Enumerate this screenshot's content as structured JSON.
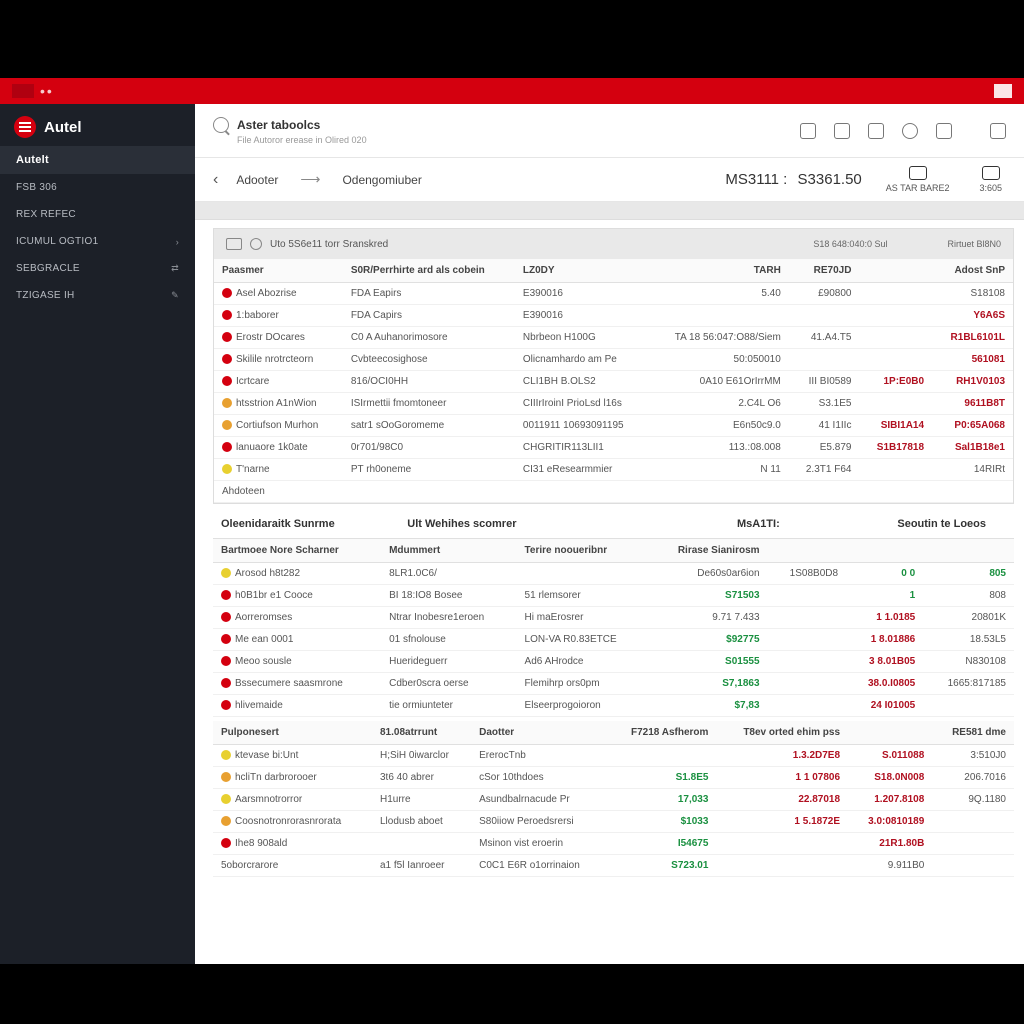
{
  "colors": {
    "accent": "#d4000f",
    "sidebar_bg": "#1c2028",
    "green": "#1a9040",
    "red_text": "#b01020"
  },
  "brand": {
    "name": "Autel"
  },
  "sidebar": {
    "active": "Autelt",
    "items": [
      {
        "label": "FSB 306"
      },
      {
        "label": "REX REFEC"
      },
      {
        "label": "ICUMUL OGTIO1",
        "caret": "›"
      },
      {
        "label": "SEBGRACLE",
        "caret": "⇄"
      },
      {
        "label": "TZIGASE IH",
        "caret": "✎"
      }
    ]
  },
  "topbar": {
    "title": "Aster taboolcs",
    "subtitle": "File Autoror erease in Olired 020"
  },
  "breadcrumb": {
    "level1": "Adooter",
    "level2": "Odengomiuber",
    "code": "MS3111 :",
    "amount": "S3361.50"
  },
  "status": [
    {
      "label": "AS TAR BARE2"
    },
    {
      "label": "3:605"
    }
  ],
  "panel1": {
    "header_left": "Uto 5S6e11 torr Sranskred",
    "header_r1": "S18 648:040:0 Sul",
    "header_r2": "Rirtuet  Bl8N0",
    "columns": [
      "Paasmer",
      "S0R/Perrhirte ard als cobein",
      "LZ0DY",
      "TARH",
      "RE70JD",
      "",
      "Adost SnP"
    ],
    "rows": [
      {
        "i": "red",
        "c": [
          "Asel Abozrise",
          "FDA Eapirs",
          "E390016",
          "5.40",
          "£90800",
          "",
          "S18108"
        ]
      },
      {
        "i": "red",
        "c": [
          "1:baborer",
          "FDA Capirs",
          "E390016",
          "",
          "",
          "",
          "Y6A6S"
        ],
        "cls": [
          "",
          "",
          "",
          "",
          "",
          "",
          "val-red"
        ]
      },
      {
        "i": "red",
        "c": [
          "Erostr DOcares",
          "C0 A Auhanorimosore",
          "Nbrbeon H100G",
          "TA 18 56:047:O88/Siem",
          "41.A4.T5",
          "",
          "R1BL6101L"
        ],
        "cls": [
          "",
          "",
          "",
          "",
          "",
          "",
          "val-red"
        ]
      },
      {
        "i": "red",
        "c": [
          "Skilile nrotrcteorn",
          "Cvbteecosighose",
          "Olicnamhardo am Pe",
          "50:050010",
          "",
          "",
          "561081"
        ],
        "cls": [
          "",
          "",
          "",
          "",
          "",
          "",
          "val-red"
        ]
      },
      {
        "i": "red",
        "c": [
          "Icrtcare",
          "816/OCI0HH",
          "CLI1BH B.OLS2",
          "0A10 E61OrIrrMM",
          "III BI0589",
          "1P:E0B0",
          "RH1V0103"
        ],
        "cls": [
          "",
          "",
          "",
          "",
          "",
          "val-red",
          "val-red"
        ]
      },
      {
        "i": "orange",
        "c": [
          "htsstrion A1nWion",
          "ISIrmettii fmomtoneer",
          "CIIIrIroinI PrioLsd l16s",
          "2.C4L O6",
          "S3.1E5",
          "",
          "9611B8T"
        ],
        "cls": [
          "",
          "",
          "",
          "",
          "",
          "",
          "val-red"
        ]
      },
      {
        "i": "orange",
        "c": [
          "Cortiufson Murhon",
          "satr1 sOoGoromeme",
          "0011911 10693091195",
          "E6n50c9.0",
          "41 I1IIc",
          "SIBI1A14",
          "P0:65A068"
        ],
        "cls": [
          "",
          "",
          "",
          "",
          "",
          "val-red",
          "val-red"
        ]
      },
      {
        "i": "red",
        "c": [
          "lanuaore 1k0ate",
          "0r701/98C0",
          "CHGRITIR113LII1",
          "113.:08.008",
          "E5.879",
          "S1B17818",
          "Sal1B18e1"
        ],
        "cls": [
          "",
          "",
          "",
          "",
          "",
          "val-red",
          "val-red"
        ]
      },
      {
        "i": "yellow",
        "c": [
          "T'narne",
          "PT rh0oneme",
          "CI31 eResearmmier",
          "N 11",
          "2.3T1 F64",
          "",
          "14RIRt"
        ]
      },
      {
        "i": "",
        "c": [
          "Ahdoteen",
          "",
          "",
          "",
          "",
          "",
          ""
        ]
      }
    ]
  },
  "section2_head": {
    "l": "Oleenidaraitk Sunrme",
    "m": "Ult Wehihes scomrer",
    "r1": "MsA1TI:",
    "r2": "Seoutin te Loeos"
  },
  "panel2": {
    "columns": [
      "Bartmoee Nore Scharner",
      "Mdummert",
      "Terire nooueribnr",
      "Rirase Sianirosm",
      "",
      "",
      ""
    ],
    "rows": [
      {
        "i": "yellow",
        "c": [
          "Arosod h8t282",
          "8LR1.0C6/",
          "",
          "De60s0ar6ion",
          "1S08B0D8",
          "0 0",
          "805"
        ],
        "cls": [
          "",
          "",
          "",
          "",
          "",
          "val-green",
          "val-green"
        ]
      },
      {
        "i": "red",
        "c": [
          "h0B1br e1 Cooce",
          "BI 18:IO8  Bosee",
          "51 rlemsorer",
          "S71503",
          "",
          "1",
          "808"
        ],
        "cls": [
          "",
          "",
          "",
          "val-green",
          "",
          "val-green",
          ""
        ]
      },
      {
        "i": "red",
        "c": [
          "Aorreromses",
          "Ntrar Inobesre1eroen",
          "Hi maErosrer",
          "9.71 7.433",
          "",
          "1 1.0185",
          "20801K"
        ],
        "cls": [
          "",
          "",
          "",
          "",
          "",
          "val-red",
          ""
        ]
      },
      {
        "i": "red",
        "c": [
          "Me ean 0001",
          "01 sfnolouse",
          "LON-VA R0.83ETCE",
          "$92775",
          "",
          "1 8.01886",
          "18.53L5"
        ],
        "cls": [
          "",
          "",
          "",
          "val-green",
          "",
          "val-red",
          ""
        ]
      },
      {
        "i": "red",
        "c": [
          "Meoo sousle",
          "Huerideguerr",
          "Ad6 AHrodce",
          "S01555",
          "",
          "3 8.01B05",
          "N830108"
        ],
        "cls": [
          "",
          "",
          "",
          "val-green",
          "",
          "val-red",
          ""
        ]
      },
      {
        "i": "red",
        "c": [
          "Bssecumere saasmrone",
          "Cdber0scra oerse",
          "Flemihrp ors0pm",
          "S7,1863",
          "",
          "38.0.I0805",
          "1665:817185"
        ],
        "cls": [
          "",
          "",
          "",
          "val-green",
          "",
          "val-red",
          ""
        ]
      },
      {
        "i": "red",
        "c": [
          "hlivemaide",
          "tie ormiunteter",
          "Elseerprogoioron",
          "$7,83",
          "",
          "24 I01005",
          ""
        ],
        "cls": [
          "",
          "",
          "",
          "val-green",
          "",
          "val-red",
          ""
        ]
      }
    ]
  },
  "section3_head": [
    "Pulponesert",
    "81.08atrrunt",
    "Daotter",
    "F7218 Asfherom",
    "T8ev orted ehim pss",
    "",
    "RE581 dme"
  ],
  "panel3": {
    "rows": [
      {
        "i": "yellow",
        "c": [
          "ktevase bi:Unt",
          "H;SiH 0iwarclor",
          "ErerocTnb",
          "",
          "1.3.2D7E8",
          "S.011088",
          "3:510J0"
        ],
        "cls": [
          "",
          "",
          "",
          "",
          "val-red",
          "val-red",
          ""
        ]
      },
      {
        "i": "orange",
        "c": [
          "hcliTn darbrorooer",
          "3t6 40 abrer",
          "cSor 10thdoes",
          "S1.8E5",
          "1 1 07806",
          "S18.0N008",
          "206.7016"
        ],
        "cls": [
          "",
          "",
          "",
          "val-green",
          "val-red",
          "val-red",
          ""
        ]
      },
      {
        "i": "yellow",
        "c": [
          "Aarsmnotrorror",
          "H1urre",
          "Asundbalrnacude Pr",
          "17,033",
          "22.87018",
          "1.207.8108",
          "9Q.1180"
        ],
        "cls": [
          "",
          "",
          "",
          "val-green",
          "val-red",
          "val-red",
          ""
        ]
      },
      {
        "i": "orange",
        "c": [
          "Coosnotronrorasnrorata",
          "Llodusb aboet",
          "S80iiow Peroedsrersi",
          "$1033",
          "1 5.1872E",
          "3.0:0810189",
          ""
        ],
        "cls": [
          "",
          "",
          "",
          "val-green",
          "val-red",
          "val-red",
          ""
        ]
      },
      {
        "i": "red",
        "c": [
          "Ihe8 908ald",
          "",
          "Msinon vist eroerin",
          "I54675",
          "",
          "21R1.80B",
          ""
        ],
        "cls": [
          "",
          "",
          "",
          "val-green",
          "",
          "val-red",
          ""
        ]
      },
      {
        "i": "",
        "c": [
          "5oborcrarore",
          "a1 f5l Ianroeer",
          "C0C1 E6R o1orrinaion",
          "S723.01",
          "",
          "9.911B0",
          ""
        ],
        "cls": [
          "",
          "",
          "",
          "val-green",
          "",
          "",
          ""
        ]
      }
    ]
  }
}
